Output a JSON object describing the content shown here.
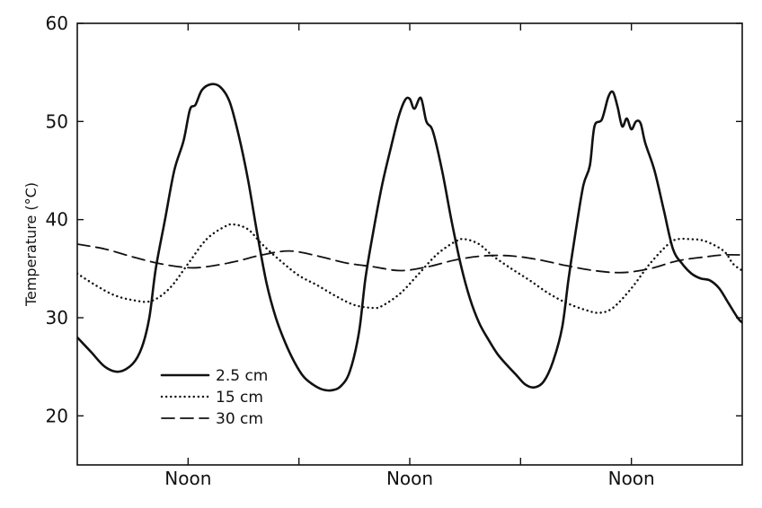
{
  "chart_data": {
    "type": "line",
    "title": "",
    "xlabel": "",
    "ylabel": "Temperature (°C)",
    "ylim": [
      15,
      60
    ],
    "xlim": [
      0,
      72
    ],
    "yticks": [
      20,
      30,
      40,
      50,
      60
    ],
    "xticks": [
      {
        "x": 12,
        "label": "Noon"
      },
      {
        "x": 36,
        "label": "Noon"
      },
      {
        "x": 60,
        "label": "Noon"
      }
    ],
    "minor_xticks": [
      24,
      48
    ],
    "grid": false,
    "legend_position": "bottom-left",
    "series": [
      {
        "name": "2.5 cm",
        "style": "solid",
        "points": [
          [
            0,
            28.0
          ],
          [
            1.5,
            26.5
          ],
          [
            3,
            25.0
          ],
          [
            4.5,
            24.5
          ],
          [
            6,
            25.3
          ],
          [
            7,
            27.0
          ],
          [
            7.8,
            30.0
          ],
          [
            8.5,
            35.0
          ],
          [
            9.5,
            40.0
          ],
          [
            10.5,
            45.0
          ],
          [
            11.5,
            48.0
          ],
          [
            12.2,
            51.2
          ],
          [
            12.8,
            51.7
          ],
          [
            13.5,
            53.2
          ],
          [
            14.5,
            53.8
          ],
          [
            15.5,
            53.5
          ],
          [
            16.5,
            52.0
          ],
          [
            17.5,
            48.5
          ],
          [
            18.5,
            44.0
          ],
          [
            19.5,
            38.5
          ],
          [
            20.5,
            33.5
          ],
          [
            21.5,
            30.0
          ],
          [
            22.5,
            27.5
          ],
          [
            23.5,
            25.5
          ],
          [
            24.5,
            24.0
          ],
          [
            25.5,
            23.2
          ],
          [
            26.5,
            22.7
          ],
          [
            27.5,
            22.6
          ],
          [
            28.5,
            23.0
          ],
          [
            29.5,
            24.5
          ],
          [
            30.5,
            28.5
          ],
          [
            31.2,
            34.0
          ],
          [
            32,
            38.5
          ],
          [
            33,
            43.5
          ],
          [
            34,
            47.5
          ],
          [
            34.8,
            50.5
          ],
          [
            35.5,
            52.2
          ],
          [
            36,
            52.3
          ],
          [
            36.5,
            51.3
          ],
          [
            37.2,
            52.4
          ],
          [
            37.8,
            50.0
          ],
          [
            38.5,
            49.0
          ],
          [
            39.5,
            45.0
          ],
          [
            40.5,
            40.0
          ],
          [
            41.5,
            35.5
          ],
          [
            42.5,
            32.0
          ],
          [
            43.5,
            29.5
          ],
          [
            44.5,
            27.8
          ],
          [
            45.5,
            26.3
          ],
          [
            46.5,
            25.2
          ],
          [
            47.5,
            24.2
          ],
          [
            48.5,
            23.2
          ],
          [
            49.5,
            22.9
          ],
          [
            50.5,
            23.5
          ],
          [
            51.5,
            25.5
          ],
          [
            52.5,
            29.0
          ],
          [
            53.2,
            34.0
          ],
          [
            54,
            39.0
          ],
          [
            54.8,
            43.5
          ],
          [
            55.5,
            45.5
          ],
          [
            56,
            49.5
          ],
          [
            56.8,
            50.2
          ],
          [
            57.5,
            52.5
          ],
          [
            58,
            53.0
          ],
          [
            58.5,
            51.5
          ],
          [
            59,
            49.5
          ],
          [
            59.5,
            50.3
          ],
          [
            60,
            49.2
          ],
          [
            60.5,
            50.0
          ],
          [
            61,
            49.8
          ],
          [
            61.5,
            47.8
          ],
          [
            62.5,
            45.0
          ],
          [
            63.5,
            41.0
          ],
          [
            64.5,
            37.0
          ],
          [
            65.5,
            35.5
          ],
          [
            66.5,
            34.5
          ],
          [
            67.5,
            34.0
          ],
          [
            68.5,
            33.8
          ],
          [
            69.5,
            33.0
          ],
          [
            70.5,
            31.5
          ],
          [
            71.5,
            30.0
          ],
          [
            72,
            29.5
          ]
        ]
      },
      {
        "name": "15 cm",
        "style": "dotted",
        "points": [
          [
            0,
            34.5
          ],
          [
            2,
            33.3
          ],
          [
            4,
            32.3
          ],
          [
            6,
            31.8
          ],
          [
            8,
            31.7
          ],
          [
            10,
            33.0
          ],
          [
            12,
            35.5
          ],
          [
            14,
            38.0
          ],
          [
            16,
            39.3
          ],
          [
            17,
            39.5
          ],
          [
            18.5,
            39.0
          ],
          [
            20,
            37.5
          ],
          [
            22,
            35.8
          ],
          [
            24,
            34.3
          ],
          [
            26,
            33.3
          ],
          [
            28,
            32.2
          ],
          [
            30,
            31.3
          ],
          [
            32,
            31.0
          ],
          [
            33,
            31.2
          ],
          [
            35,
            32.5
          ],
          [
            37,
            34.5
          ],
          [
            39,
            36.5
          ],
          [
            41,
            37.8
          ],
          [
            42,
            38.0
          ],
          [
            43.5,
            37.5
          ],
          [
            45,
            36.3
          ],
          [
            47,
            35.0
          ],
          [
            49,
            33.8
          ],
          [
            51,
            32.5
          ],
          [
            53,
            31.5
          ],
          [
            55,
            30.8
          ],
          [
            56.5,
            30.5
          ],
          [
            58,
            31.0
          ],
          [
            60,
            33.0
          ],
          [
            62,
            35.5
          ],
          [
            64,
            37.5
          ],
          [
            65,
            38.0
          ],
          [
            66.5,
            38.0
          ],
          [
            68,
            37.8
          ],
          [
            70,
            36.8
          ],
          [
            71,
            35.5
          ],
          [
            72,
            34.8
          ]
        ]
      },
      {
        "name": "30 cm",
        "style": "dashed",
        "points": [
          [
            0,
            37.5
          ],
          [
            3,
            37.0
          ],
          [
            6,
            36.2
          ],
          [
            9,
            35.5
          ],
          [
            12,
            35.1
          ],
          [
            14,
            35.2
          ],
          [
            17,
            35.7
          ],
          [
            20,
            36.4
          ],
          [
            23,
            36.8
          ],
          [
            26,
            36.3
          ],
          [
            29,
            35.6
          ],
          [
            32,
            35.2
          ],
          [
            35,
            34.8
          ],
          [
            38,
            35.2
          ],
          [
            41,
            35.9
          ],
          [
            44,
            36.3
          ],
          [
            47,
            36.3
          ],
          [
            50,
            35.9
          ],
          [
            53,
            35.3
          ],
          [
            56,
            34.8
          ],
          [
            59,
            34.6
          ],
          [
            62,
            35.0
          ],
          [
            65,
            35.8
          ],
          [
            68,
            36.2
          ],
          [
            70,
            36.4
          ],
          [
            72,
            36.4
          ]
        ]
      }
    ]
  }
}
